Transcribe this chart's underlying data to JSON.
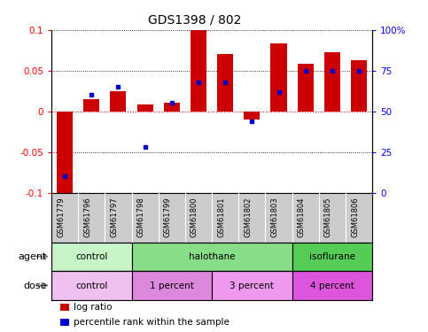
{
  "title": "GDS1398 / 802",
  "samples": [
    "GSM61779",
    "GSM61796",
    "GSM61797",
    "GSM61798",
    "GSM61799",
    "GSM61800",
    "GSM61801",
    "GSM61802",
    "GSM61803",
    "GSM61804",
    "GSM61805",
    "GSM61806"
  ],
  "log_ratio": [
    -0.1,
    0.015,
    0.025,
    0.008,
    0.01,
    0.1,
    0.07,
    -0.01,
    0.083,
    0.058,
    0.072,
    0.063
  ],
  "percentile_normalized": [
    0.1,
    0.6,
    0.65,
    0.28,
    0.55,
    0.68,
    0.68,
    0.44,
    0.62,
    0.75,
    0.75,
    0.75
  ],
  "ylim": [
    -0.1,
    0.1
  ],
  "yticks_left": [
    -0.1,
    -0.05,
    0.0,
    0.05,
    0.1
  ],
  "yticks_left_labels": [
    "-0.1",
    "-0.05",
    "0",
    "0.05",
    "0.1"
  ],
  "yticks_right_labels": [
    "0",
    "25",
    "50",
    "75",
    "100%"
  ],
  "agent_groups": [
    {
      "label": "control",
      "start": 0,
      "end": 3,
      "color": "#c8f5c8"
    },
    {
      "label": "halothane",
      "start": 3,
      "end": 9,
      "color": "#88dd88"
    },
    {
      "label": "isoflurane",
      "start": 9,
      "end": 12,
      "color": "#55cc55"
    }
  ],
  "dose_groups": [
    {
      "label": "control",
      "start": 0,
      "end": 3,
      "color": "#f0c0f0"
    },
    {
      "label": "1 percent",
      "start": 3,
      "end": 6,
      "color": "#dd88dd"
    },
    {
      "label": "3 percent",
      "start": 6,
      "end": 9,
      "color": "#ee99ee"
    },
    {
      "label": "4 percent",
      "start": 9,
      "end": 12,
      "color": "#dd55dd"
    }
  ],
  "bar_color": "#cc0000",
  "dot_color": "#0000cc",
  "bg_color": "#ffffff",
  "zero_line_color": "#cc0000",
  "legend_items": [
    {
      "label": "log ratio",
      "color": "#cc0000"
    },
    {
      "label": "percentile rank within the sample",
      "color": "#0000cc"
    }
  ],
  "sample_bg": "#cccccc"
}
